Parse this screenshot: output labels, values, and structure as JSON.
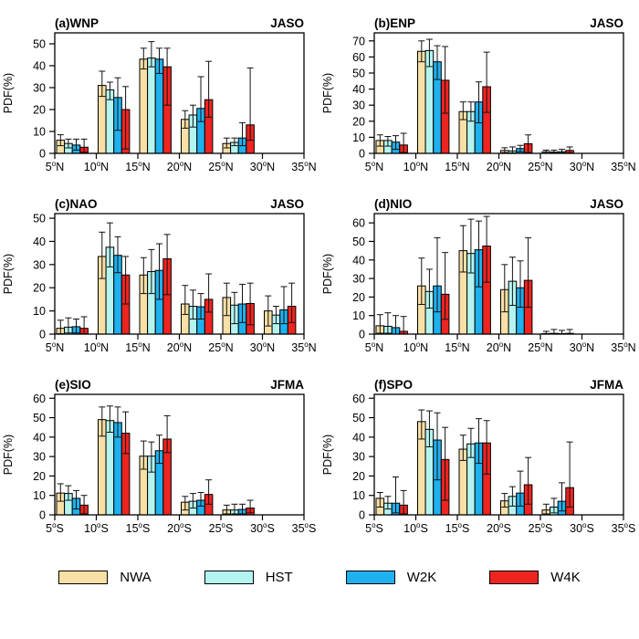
{
  "figure": {
    "background": "#ffffff",
    "frame_color": "#000000",
    "errorbar_color": "#111111"
  },
  "series": [
    {
      "name": "NWA",
      "color": "#F8DFA6"
    },
    {
      "name": "HST",
      "color": "#B4F4F0"
    },
    {
      "name": "W2K",
      "color": "#1FB0EE"
    },
    {
      "name": "W4K",
      "color": "#EE2421"
    }
  ],
  "legend": {
    "items": [
      {
        "label": "NWA"
      },
      {
        "label": "HST"
      },
      {
        "label": "W2K"
      },
      {
        "label": "W4K"
      }
    ]
  },
  "chart_data": [
    {
      "type": "bar",
      "title": "(a)WNP",
      "season": "JASO",
      "ylabel": "PDF(%)",
      "xlabel": "",
      "ylim": [
        0,
        55
      ],
      "yticks": [
        0,
        10,
        20,
        30,
        40,
        50
      ],
      "xtick_labels": [
        "5°N",
        "10°N",
        "15°N",
        "20°N",
        "25°N",
        "30°N",
        "35°N"
      ],
      "categories": [
        "5°N",
        "10°N",
        "15°N",
        "20°N",
        "25°N",
        "30°N"
      ],
      "series": [
        {
          "name": "NWA",
          "values": [
            6,
            31,
            43,
            15.5,
            4.5,
            0
          ],
          "err_lo": [
            3.5,
            26,
            38.5,
            11.5,
            2.5,
            0
          ],
          "err_hi": [
            8.5,
            37.5,
            48,
            19.5,
            7,
            0
          ]
        },
        {
          "name": "HST",
          "values": [
            4.5,
            29,
            43.5,
            17.5,
            5,
            0
          ],
          "err_lo": [
            2.5,
            24.5,
            39.5,
            12,
            3.5,
            0
          ],
          "err_hi": [
            6.5,
            32.5,
            51,
            22,
            7,
            0
          ]
        },
        {
          "name": "W2K",
          "values": [
            3.8,
            25.5,
            43,
            20.5,
            7,
            0
          ],
          "err_lo": [
            1.5,
            10.5,
            36.5,
            14.5,
            3.5,
            0
          ],
          "err_hi": [
            6.5,
            34.5,
            48,
            35,
            14,
            0
          ]
        },
        {
          "name": "W4K",
          "values": [
            2.8,
            20,
            39.5,
            24.5,
            13,
            0
          ],
          "err_lo": [
            0.5,
            2,
            22,
            16.5,
            6,
            0
          ],
          "err_hi": [
            6.5,
            30.5,
            48,
            42,
            39,
            0
          ]
        }
      ]
    },
    {
      "type": "bar",
      "title": "(b)ENP",
      "season": "JASO",
      "ylabel": "PDF(%)",
      "xlabel": "",
      "ylim": [
        0,
        75
      ],
      "yticks": [
        0,
        10,
        20,
        30,
        40,
        50,
        60,
        70
      ],
      "xtick_labels": [
        "5°N",
        "10°N",
        "15°N",
        "20°N",
        "25°N",
        "30°N",
        "35°N"
      ],
      "categories": [
        "5°N",
        "10°N",
        "15°N",
        "20°N",
        "25°N",
        "30°N"
      ],
      "series": [
        {
          "name": "NWA",
          "values": [
            8,
            63.5,
            26,
            1.8,
            1,
            0
          ],
          "err_lo": [
            4.5,
            57,
            21,
            0.5,
            0.2,
            0
          ],
          "err_hi": [
            11.5,
            70,
            32,
            3.5,
            2,
            0
          ]
        },
        {
          "name": "HST",
          "values": [
            8,
            64,
            26,
            1.5,
            0.8,
            0
          ],
          "err_lo": [
            4.5,
            54,
            20,
            0.3,
            0.2,
            0
          ],
          "err_hi": [
            10.5,
            71,
            32,
            4,
            2,
            0
          ]
        },
        {
          "name": "W2K",
          "values": [
            7,
            57,
            32,
            3,
            1,
            0
          ],
          "err_lo": [
            2.5,
            46,
            19,
            1,
            0.2,
            0
          ],
          "err_hi": [
            11,
            67,
            44.5,
            5,
            2.5,
            0
          ]
        },
        {
          "name": "W4K",
          "values": [
            5.2,
            45.5,
            41.5,
            6,
            1.8,
            0
          ],
          "err_lo": [
            0.5,
            25,
            25.5,
            0.5,
            0.3,
            0
          ],
          "err_hi": [
            12.5,
            66.5,
            63,
            11.5,
            4,
            0
          ]
        }
      ]
    },
    {
      "type": "bar",
      "title": "(c)NAO",
      "season": "JASO",
      "ylabel": "PDF(%)",
      "xlabel": "",
      "ylim": [
        0,
        52
      ],
      "yticks": [
        0,
        10,
        20,
        30,
        40,
        50
      ],
      "xtick_labels": [
        "5°N",
        "10°N",
        "15°N",
        "20°N",
        "25°N",
        "30°N",
        "35°N"
      ],
      "categories": [
        "5°N",
        "10°N",
        "15°N",
        "20°N",
        "25°N",
        "30°N"
      ],
      "series": [
        {
          "name": "NWA",
          "values": [
            2.5,
            33.5,
            25.5,
            13,
            15.8,
            10
          ],
          "err_lo": [
            0.2,
            24,
            17.5,
            8.5,
            8,
            3.5
          ],
          "err_hi": [
            6,
            44,
            33,
            21,
            22,
            16.5
          ]
        },
        {
          "name": "HST",
          "values": [
            3,
            37.5,
            27,
            12,
            12.5,
            8.2
          ],
          "err_lo": [
            0.5,
            29,
            17.5,
            6.5,
            4.5,
            4.5
          ],
          "err_hi": [
            7,
            48,
            36.5,
            19,
            18,
            12
          ]
        },
        {
          "name": "W2K",
          "values": [
            3.2,
            34,
            27.5,
            11.8,
            13,
            10.5
          ],
          "err_lo": [
            0.5,
            26.5,
            15,
            6.5,
            5,
            4.5
          ],
          "err_hi": [
            6.5,
            42,
            39,
            17.5,
            21.5,
            20.5
          ]
        },
        {
          "name": "W4K",
          "values": [
            2.5,
            25.5,
            32.5,
            15,
            13.2,
            12
          ],
          "err_lo": [
            0.2,
            13,
            17,
            9.5,
            4,
            5
          ],
          "err_hi": [
            7.5,
            33.5,
            43,
            26,
            22,
            22
          ]
        }
      ]
    },
    {
      "type": "bar",
      "title": "(d)NIO",
      "season": "JASO",
      "ylabel": "PDF(%)",
      "xlabel": "",
      "ylim": [
        0,
        65
      ],
      "yticks": [
        0,
        10,
        20,
        30,
        40,
        50,
        60
      ],
      "xtick_labels": [
        "5°N",
        "10°N",
        "15°N",
        "20°N",
        "25°N",
        "30°N",
        "35°N"
      ],
      "categories": [
        "5°N",
        "10°N",
        "15°N",
        "20°N",
        "25°N",
        "30°N"
      ],
      "series": [
        {
          "name": "NWA",
          "values": [
            4.5,
            26,
            45,
            24,
            0.3,
            0
          ],
          "err_lo": [
            0.5,
            16,
            33.5,
            12,
            0,
            0
          ],
          "err_hi": [
            10.5,
            41,
            58.5,
            37.5,
            1.5,
            0
          ]
        },
        {
          "name": "HST",
          "values": [
            4.2,
            23,
            43.5,
            28.5,
            0.4,
            0
          ],
          "err_lo": [
            0.5,
            14,
            33,
            15.5,
            0,
            0
          ],
          "err_hi": [
            11.5,
            35,
            62,
            41.5,
            2.5,
            0
          ]
        },
        {
          "name": "W2K",
          "values": [
            3.5,
            26,
            45.5,
            25,
            0.3,
            0
          ],
          "err_lo": [
            0,
            12,
            25.5,
            14.5,
            0,
            0
          ],
          "err_hi": [
            10,
            52,
            61,
            39.5,
            2,
            0
          ]
        },
        {
          "name": "W4K",
          "values": [
            1.5,
            21.5,
            47.5,
            29,
            0.4,
            0
          ],
          "err_lo": [
            0,
            8,
            28,
            14.5,
            0,
            0
          ],
          "err_hi": [
            9.5,
            44,
            63.5,
            52,
            2.5,
            0
          ]
        }
      ]
    },
    {
      "type": "bar",
      "title": "(e)SIO",
      "season": "JFMA",
      "ylabel": "PDF(%)",
      "xlabel": "",
      "ylim": [
        0,
        62
      ],
      "yticks": [
        0,
        10,
        20,
        30,
        40,
        50,
        60
      ],
      "xtick_labels": [
        "5°S",
        "10°S",
        "15°S",
        "20°S",
        "25°S",
        "30°S",
        "35°S"
      ],
      "categories": [
        "5°S",
        "10°S",
        "15°S",
        "20°S",
        "25°S",
        "30°S"
      ],
      "series": [
        {
          "name": "NWA",
          "values": [
            11.2,
            49,
            30.2,
            6.5,
            2.5,
            0
          ],
          "err_lo": [
            7,
            40.5,
            23.5,
            2.5,
            0.5,
            0
          ],
          "err_hi": [
            16,
            55.5,
            38,
            9.5,
            5,
            0
          ]
        },
        {
          "name": "HST",
          "values": [
            11,
            48.5,
            30.2,
            7,
            2.5,
            0
          ],
          "err_lo": [
            7.5,
            42.5,
            22,
            3.5,
            0.5,
            0
          ],
          "err_hi": [
            15,
            56,
            37.5,
            11,
            5.5,
            0
          ]
        },
        {
          "name": "W2K",
          "values": [
            8.5,
            47.5,
            33,
            7.5,
            2.8,
            0
          ],
          "err_lo": [
            3,
            40,
            26.5,
            4.5,
            0.5,
            0
          ],
          "err_hi": [
            12.5,
            55.5,
            41,
            11.5,
            5.5,
            0
          ]
        },
        {
          "name": "W4K",
          "values": [
            5,
            42,
            39,
            10.5,
            3.5,
            0
          ],
          "err_lo": [
            0.5,
            31.5,
            32,
            5.5,
            1,
            0
          ],
          "err_hi": [
            10,
            53,
            51,
            18,
            7.5,
            0
          ]
        }
      ]
    },
    {
      "type": "bar",
      "title": "(f)SPO",
      "season": "JFMA",
      "ylabel": "PDF(%)",
      "xlabel": "",
      "ylim": [
        0,
        62
      ],
      "yticks": [
        0,
        10,
        20,
        30,
        40,
        50,
        60
      ],
      "xtick_labels": [
        "5°S",
        "10°S",
        "15°S",
        "20°S",
        "25°S",
        "30°S",
        "35°S"
      ],
      "categories": [
        "5°S",
        "10°S",
        "15°S",
        "20°S",
        "25°S",
        "30°S"
      ],
      "series": [
        {
          "name": "NWA",
          "values": [
            8.5,
            48,
            33.8,
            7.2,
            2.5,
            0
          ],
          "err_lo": [
            4,
            39,
            28,
            4,
            0.5,
            0
          ],
          "err_hi": [
            11.5,
            54,
            41,
            11,
            5.5,
            0
          ]
        },
        {
          "name": "HST",
          "values": [
            6,
            44,
            36.5,
            9.5,
            4,
            0
          ],
          "err_lo": [
            3,
            35,
            29.5,
            4.5,
            1,
            0
          ],
          "err_hi": [
            9.5,
            53.5,
            44.5,
            14.5,
            8.5,
            0
          ]
        },
        {
          "name": "W2K",
          "values": [
            6,
            38.5,
            37,
            11.2,
            7,
            0
          ],
          "err_lo": [
            1,
            18,
            26.5,
            4.5,
            2,
            0
          ],
          "err_hi": [
            19.5,
            52.5,
            49.5,
            22.5,
            16.5,
            0
          ]
        },
        {
          "name": "W4K",
          "values": [
            5,
            28.5,
            37,
            15.5,
            14,
            0
          ],
          "err_lo": [
            0.5,
            7.5,
            21,
            5.5,
            4,
            0
          ],
          "err_hi": [
            12.5,
            45,
            48.5,
            29.5,
            37.5,
            0
          ]
        }
      ]
    }
  ]
}
